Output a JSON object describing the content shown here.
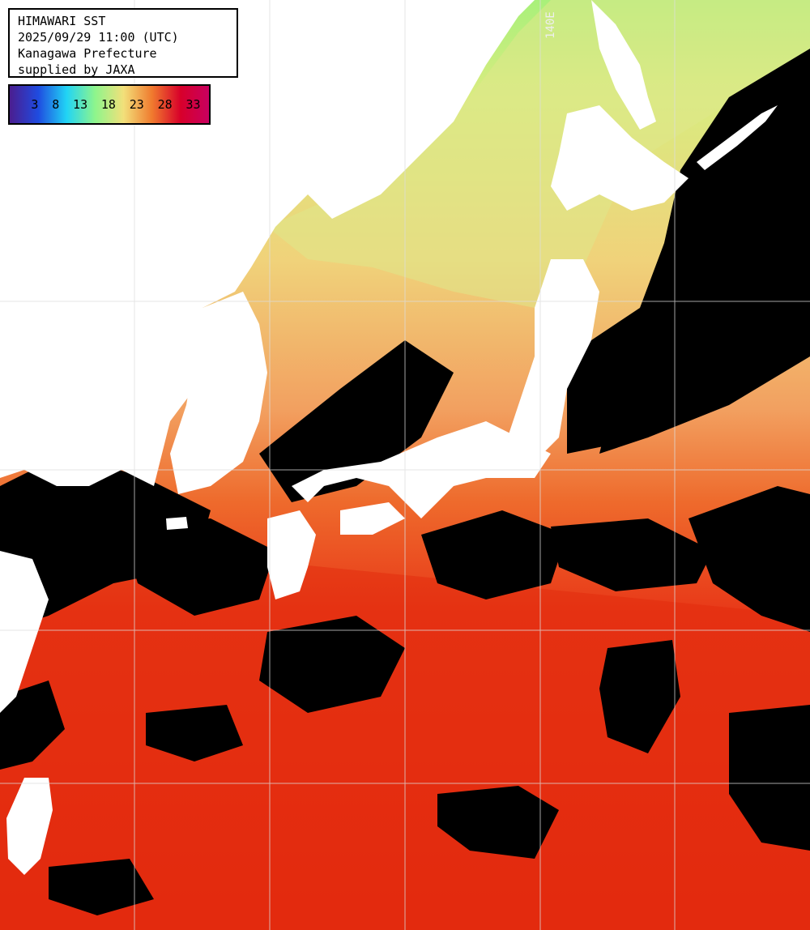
{
  "header": {
    "line1": "HIMAWARI SST",
    "line2": "2025/09/29 11:00 (UTC)",
    "line3": "Kanagawa Prefecture",
    "line4": "supplied by JAXA"
  },
  "legend": {
    "ticks": [
      "3",
      "8",
      "13",
      "18",
      "23",
      "28",
      "33"
    ],
    "colors": [
      "#4b1d8f",
      "#1f4be0",
      "#21d4f5",
      "#8ef58c",
      "#f2e07a",
      "#f07a2e",
      "#d8002a",
      "#c80060"
    ]
  },
  "map": {
    "longitude_label": "140E",
    "colors": {
      "land": "#ffffff",
      "cloud": "#000000",
      "gridline": "#dddddd",
      "warm": "#e83010",
      "orange": "#f08a40",
      "yellow": "#ead27a",
      "green": "#b8ee7a"
    }
  }
}
